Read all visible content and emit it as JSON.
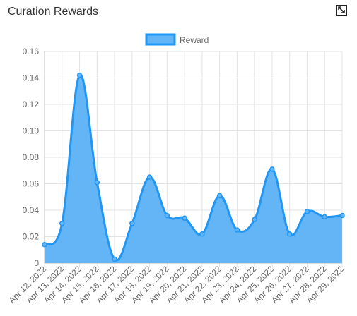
{
  "widget": {
    "title": "Curation Rewards",
    "expand_icon": "expand-icon"
  },
  "chart_data": {
    "type": "area",
    "title": "",
    "xlabel": "",
    "ylabel": "",
    "categories": [
      "Apr 12, 2022",
      "Apr 13, 2022",
      "Apr 14, 2022",
      "Apr 15, 2022",
      "Apr 16, 2022",
      "Apr 17, 2022",
      "Apr 18, 2022",
      "Apr 19, 2022",
      "Apr 20, 2022",
      "Apr 21, 2022",
      "Apr 22, 2022",
      "Apr 23, 2022",
      "Apr 24, 2022",
      "Apr 25, 2022",
      "Apr 26, 2022",
      "Apr 27, 2022",
      "Apr 28, 2022",
      "Apr 29, 2022"
    ],
    "series": [
      {
        "name": "Reward",
        "values": [
          0.014,
          0.03,
          0.142,
          0.061,
          0.003,
          0.03,
          0.065,
          0.036,
          0.034,
          0.022,
          0.051,
          0.025,
          0.033,
          0.071,
          0.022,
          0.039,
          0.035,
          0.036
        ],
        "fill": "#64b5f6",
        "stroke": "#2196f3"
      }
    ],
    "ylim": [
      0,
      0.16
    ],
    "yticks": [
      "0.16",
      "0.14",
      "0.12",
      "0.10",
      "0.08",
      "0.06",
      "0.04",
      "0.02",
      "0"
    ],
    "grid": true,
    "legend_position": "top-center"
  }
}
